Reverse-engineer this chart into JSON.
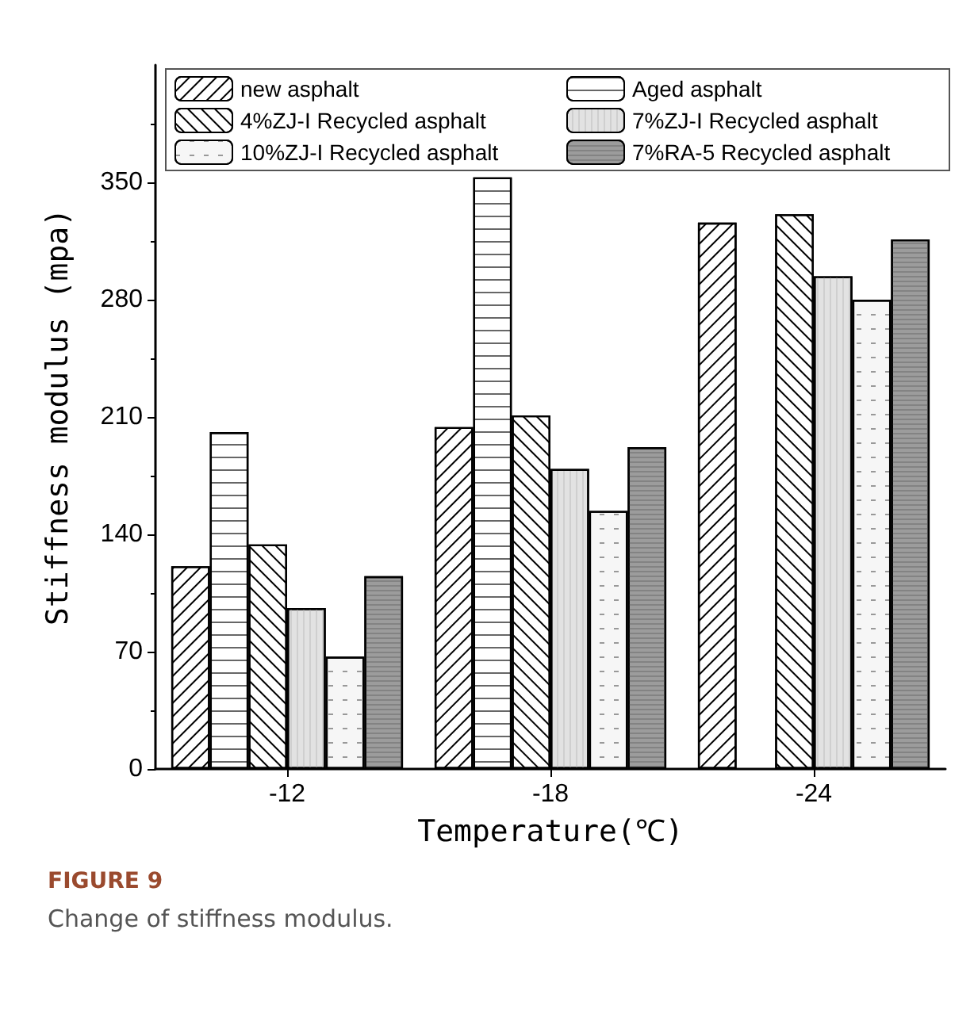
{
  "chart_data": {
    "type": "bar",
    "xlabel": "Temperature(℃)",
    "ylabel": "Stiffness modulus (mpa)",
    "categories": [
      "-12",
      "-18",
      "-24"
    ],
    "series": [
      {
        "name": "new asphalt",
        "color": "#ffffff",
        "values": [
          121,
          204,
          326
        ]
      },
      {
        "name": "Aged asphalt",
        "color": "#ffffff",
        "values": [
          201,
          353,
          null
        ]
      },
      {
        "name": "4%ZJ-I Recycled asphalt",
        "color": "#ffffff",
        "values": [
          134,
          211,
          331
        ]
      },
      {
        "name": "7%ZJ-I Recycled asphalt",
        "color": "#e2e2e2",
        "values": [
          96,
          179,
          294
        ]
      },
      {
        "name": "10%ZJ-I Recycled asphalt",
        "color": "#f6f6f6",
        "values": [
          67,
          154,
          280
        ]
      },
      {
        "name": "7%RA-5 Recycled asphalt",
        "color": "#9c9c9c",
        "values": [
          115,
          192,
          316
        ]
      }
    ],
    "ylim": [
      0,
      420
    ],
    "yticks": [
      0,
      70,
      140,
      210,
      280,
      350
    ],
    "grid": false,
    "legend": "top",
    "annotations": [
      "FIGURE 9",
      "Change of stiffness modulus."
    ]
  }
}
